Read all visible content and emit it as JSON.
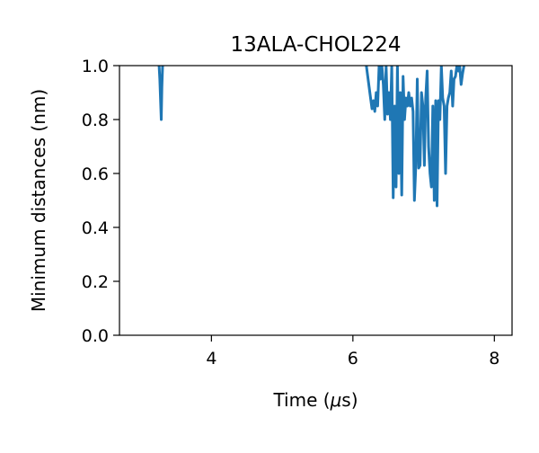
{
  "chart_data": {
    "type": "line",
    "title": "13ALA-CHOL224",
    "xlabel_prefix": "Time (",
    "xlabel_mu": "μ",
    "xlabel_suffix": "s)",
    "ylabel": "Minimum distances (nm)",
    "xlim": [
      2.7,
      8.25
    ],
    "ylim": [
      0.0,
      1.0
    ],
    "xticks": [
      4,
      6,
      8
    ],
    "yticks": [
      0.0,
      0.2,
      0.4,
      0.6,
      0.8,
      1.0
    ],
    "xtick_labels": [
      "4",
      "6",
      "8"
    ],
    "ytick_labels": [
      "0.0",
      "0.2",
      "0.4",
      "0.6",
      "0.8",
      "1.0"
    ],
    "grid": false,
    "line_color": "#1f77b4",
    "series": [
      {
        "segments": [
          [
            [
              3.26,
              1.0
            ],
            [
              3.27,
              0.95
            ],
            [
              3.29,
              0.8
            ],
            [
              3.3,
              0.92
            ],
            [
              3.31,
              1.0
            ]
          ],
          [
            [
              6.19,
              1.0
            ],
            [
              6.24,
              0.9
            ],
            [
              6.27,
              0.84
            ],
            [
              6.29,
              0.87
            ],
            [
              6.31,
              0.83
            ],
            [
              6.33,
              0.9
            ],
            [
              6.35,
              0.85
            ],
            [
              6.37,
              1.0
            ],
            [
              6.39,
              0.95
            ],
            [
              6.41,
              1.0
            ],
            [
              6.43,
              0.93
            ],
            [
              6.45,
              0.8
            ],
            [
              6.47,
              1.0
            ],
            [
              6.49,
              0.82
            ],
            [
              6.51,
              0.9
            ],
            [
              6.53,
              0.8
            ],
            [
              6.55,
              1.0
            ],
            [
              6.57,
              0.51
            ],
            [
              6.59,
              0.85
            ],
            [
              6.61,
              0.55
            ],
            [
              6.63,
              1.0
            ],
            [
              6.65,
              0.6
            ],
            [
              6.67,
              0.9
            ],
            [
              6.69,
              0.52
            ],
            [
              6.71,
              0.96
            ],
            [
              6.73,
              0.8
            ],
            [
              6.75,
              0.88
            ],
            [
              6.77,
              0.85
            ],
            [
              6.79,
              0.9
            ],
            [
              6.81,
              0.85
            ],
            [
              6.83,
              0.88
            ],
            [
              6.85,
              0.83
            ],
            [
              6.87,
              0.5
            ],
            [
              6.89,
              0.63
            ],
            [
              6.91,
              0.95
            ],
            [
              6.93,
              0.62
            ],
            [
              6.95,
              0.63
            ],
            [
              6.97,
              0.9
            ],
            [
              6.99,
              0.85
            ],
            [
              7.01,
              0.63
            ],
            [
              7.03,
              0.88
            ],
            [
              7.05,
              0.98
            ],
            [
              7.07,
              0.7
            ],
            [
              7.09,
              0.6
            ],
            [
              7.11,
              0.55
            ],
            [
              7.13,
              0.85
            ],
            [
              7.15,
              0.5
            ],
            [
              7.17,
              0.87
            ],
            [
              7.19,
              0.48
            ],
            [
              7.21,
              0.87
            ],
            [
              7.23,
              0.8
            ],
            [
              7.25,
              1.0
            ],
            [
              7.27,
              0.88
            ],
            [
              7.29,
              0.85
            ],
            [
              7.31,
              0.6
            ],
            [
              7.33,
              0.85
            ],
            [
              7.35,
              0.88
            ],
            [
              7.37,
              0.9
            ],
            [
              7.39,
              0.98
            ],
            [
              7.41,
              0.85
            ],
            [
              7.43,
              0.95
            ],
            [
              7.45,
              0.96
            ],
            [
              7.47,
              1.0
            ],
            [
              7.49,
              0.98
            ],
            [
              7.51,
              1.0
            ],
            [
              7.53,
              0.93
            ],
            [
              7.55,
              0.97
            ],
            [
              7.57,
              1.0
            ]
          ]
        ]
      }
    ]
  }
}
